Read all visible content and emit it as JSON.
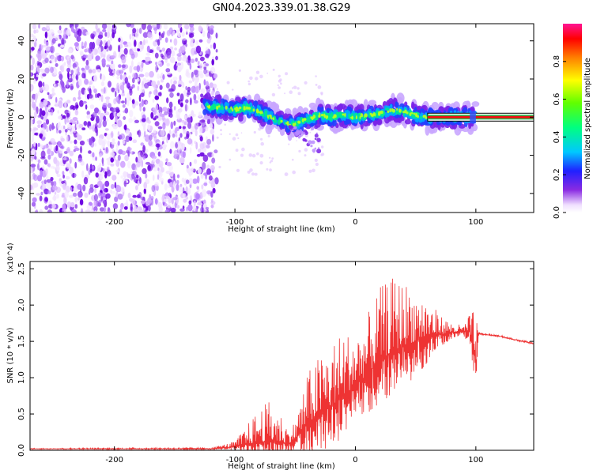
{
  "title": "GN04.2023.339.01.38.G29",
  "chart_data": [
    {
      "type": "heatmap",
      "xlabel": "Height of straight line (km)",
      "ylabel": "Frequency (Hz)",
      "xlim": [
        -270,
        148
      ],
      "ylim": [
        -50,
        49
      ],
      "xticks": [
        -200,
        -100,
        0,
        100
      ],
      "yticks": [
        -40,
        -20,
        0,
        20,
        40
      ],
      "colorbar": {
        "label": "Normalized spectral amplitude",
        "range": [
          0,
          1
        ],
        "ticks": [
          "0.0",
          "0.2",
          "0.4",
          "0.6",
          "0.8"
        ],
        "tick_values": [
          0,
          0.2,
          0.4,
          0.6,
          0.8
        ]
      },
      "noise_region": {
        "x": [
          -270,
          -115
        ],
        "y": [
          -50,
          49
        ]
      },
      "ridge": {
        "x": [
          -125,
          -110,
          -100,
          -90,
          -80,
          -70,
          -60,
          -50,
          -40,
          -30,
          -20,
          -10,
          0,
          10,
          20,
          30,
          40,
          50,
          60,
          70,
          80,
          90,
          100,
          148
        ],
        "y": [
          6,
          5,
          4,
          5,
          3,
          0,
          -3,
          -4,
          -1,
          1,
          0,
          1,
          0,
          1,
          2,
          4,
          3,
          1,
          0,
          0,
          0,
          0,
          0,
          0
        ]
      },
      "carrier": {
        "x_start": 60,
        "x_end": 148,
        "y": 0
      }
    },
    {
      "type": "line",
      "xlabel": "Height of straight line (km)",
      "ylabel": "SNR (10 * v/v)",
      "scale_note": "(x10^4)",
      "xlim": [
        -270,
        148
      ],
      "ylim": [
        0,
        2.6
      ],
      "xticks": [
        -200,
        -100,
        0,
        100
      ],
      "yticks": [
        "0.0",
        "0.5",
        "1.0",
        "1.5",
        "2.0",
        "2.5"
      ],
      "ytick_values": [
        0,
        0.5,
        1.0,
        1.5,
        2.0,
        2.5
      ],
      "series_color": "#ee3333",
      "envelope": {
        "x": [
          -270,
          -120,
          -100,
          -90,
          -80,
          -70,
          -60,
          -55,
          -50,
          -40,
          -30,
          -20,
          -10,
          0,
          10,
          20,
          30,
          40,
          50,
          60,
          70,
          80,
          90,
          95,
          100,
          102,
          103,
          105,
          110,
          120,
          130,
          148
        ],
        "base": [
          0.02,
          0.02,
          0.05,
          0.08,
          0.12,
          0.12,
          0.1,
          0.1,
          0.15,
          0.35,
          0.5,
          0.6,
          0.75,
          0.9,
          1.05,
          1.25,
          1.35,
          1.45,
          1.5,
          1.55,
          1.6,
          1.62,
          1.63,
          1.63,
          1.2,
          1.6,
          1.6,
          1.6,
          1.59,
          1.57,
          1.53,
          1.47
        ],
        "amp": [
          0.01,
          0.02,
          0.08,
          0.3,
          0.5,
          0.65,
          0.4,
          0.2,
          0.3,
          0.8,
          0.9,
          1.0,
          1.0,
          0.8,
          0.9,
          1.1,
          1.15,
          1.0,
          0.8,
          0.6,
          0.3,
          0.15,
          0.1,
          0.3,
          0.8,
          0.05,
          0.02,
          0.02,
          0.02,
          0.02,
          0.02,
          0.02
        ]
      }
    }
  ]
}
